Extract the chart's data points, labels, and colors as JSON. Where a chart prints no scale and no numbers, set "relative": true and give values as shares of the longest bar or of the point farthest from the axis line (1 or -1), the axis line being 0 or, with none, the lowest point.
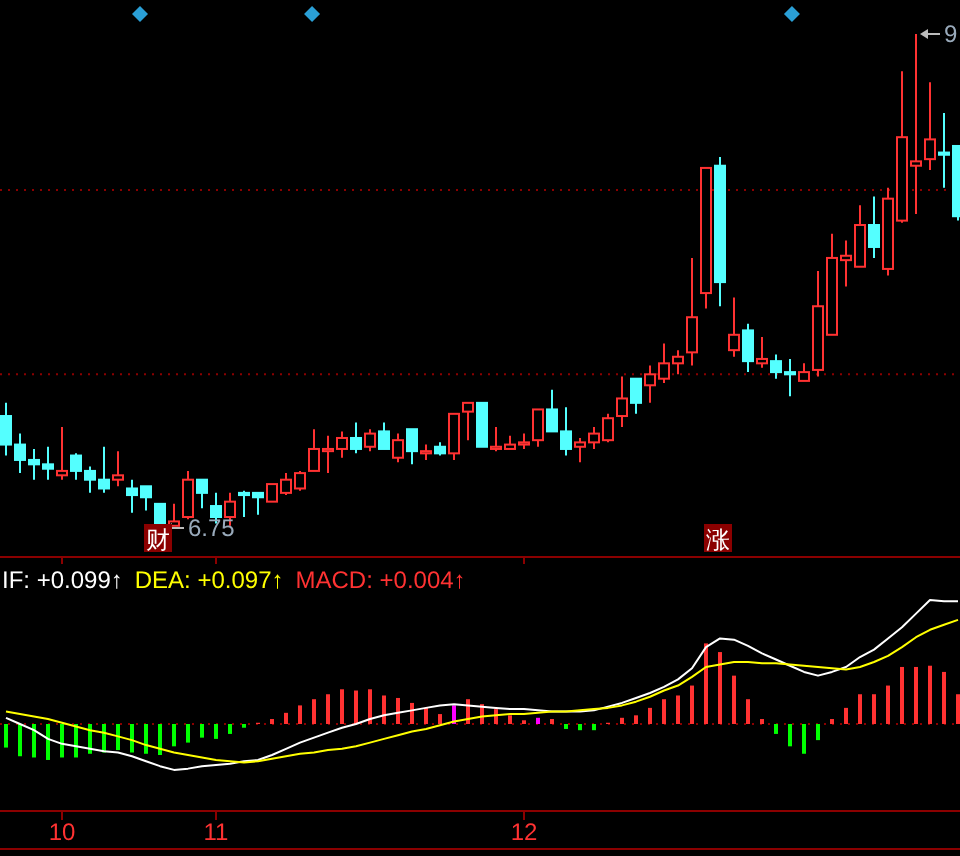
{
  "chart_data": [
    {
      "type": "candlestick",
      "categories": [
        null,
        null,
        null,
        null,
        "10",
        null,
        null,
        null,
        null,
        null,
        null,
        null,
        null,
        null,
        null,
        "11",
        null,
        null,
        null,
        null,
        null,
        null,
        null,
        null,
        null,
        null,
        null,
        null,
        null,
        null,
        null,
        null,
        null,
        null,
        null,
        null,
        null,
        "12",
        null,
        null,
        null,
        null,
        null,
        null,
        null,
        null,
        null,
        null,
        null,
        null,
        null,
        null,
        null,
        null,
        null,
        null,
        null,
        null,
        null,
        null,
        null,
        null,
        null,
        null,
        null,
        null,
        null,
        null,
        null
      ],
      "tick_labels": false,
      "ref_lines": [
        {
          "axis": "y",
          "value": 7.45,
          "color": "#8b0000",
          "line_style": "dotted"
        },
        {
          "axis": "y",
          "value": 8.29,
          "color": "#8b0000",
          "line_style": "dotted"
        }
      ],
      "ohlc": [
        [
          7.26,
          7.32,
          7.08,
          7.13
        ],
        [
          7.13,
          7.18,
          7.0,
          7.06
        ],
        [
          7.06,
          7.11,
          6.97,
          7.04
        ],
        [
          7.04,
          7.12,
          6.97,
          7.02
        ],
        [
          6.99,
          7.21,
          6.97,
          7.01
        ],
        [
          7.08,
          7.09,
          6.97,
          7.01
        ],
        [
          7.01,
          7.03,
          6.91,
          6.97
        ],
        [
          6.97,
          7.12,
          6.91,
          6.93
        ],
        [
          6.97,
          7.1,
          6.94,
          6.99
        ],
        [
          6.93,
          6.97,
          6.82,
          6.9
        ],
        [
          6.94,
          6.94,
          6.83,
          6.89
        ],
        [
          6.86,
          6.86,
          6.75,
          6.76
        ],
        [
          6.76,
          6.86,
          6.76,
          6.78
        ],
        [
          6.8,
          7.01,
          6.79,
          6.97
        ],
        [
          6.97,
          6.97,
          6.84,
          6.91
        ],
        [
          6.85,
          6.91,
          6.77,
          6.8
        ],
        [
          6.8,
          6.91,
          6.76,
          6.87
        ],
        [
          6.91,
          6.92,
          6.8,
          6.9
        ],
        [
          6.91,
          6.91,
          6.81,
          6.89
        ],
        [
          6.87,
          6.95,
          6.87,
          6.95
        ],
        [
          6.91,
          7.0,
          6.9,
          6.97
        ],
        [
          6.93,
          7.01,
          6.92,
          7.0
        ],
        [
          7.01,
          7.2,
          7.01,
          7.11
        ],
        [
          7.1,
          7.17,
          7.0,
          7.11
        ],
        [
          7.11,
          7.19,
          7.07,
          7.16
        ],
        [
          7.16,
          7.23,
          7.09,
          7.11
        ],
        [
          7.12,
          7.2,
          7.1,
          7.18
        ],
        [
          7.19,
          7.23,
          7.11,
          7.11
        ],
        [
          7.07,
          7.18,
          7.05,
          7.15
        ],
        [
          7.2,
          7.2,
          7.04,
          7.1
        ],
        [
          7.09,
          7.13,
          7.06,
          7.1
        ],
        [
          7.12,
          7.14,
          7.08,
          7.09
        ],
        [
          7.09,
          7.27,
          7.06,
          7.27
        ],
        [
          7.28,
          7.32,
          7.15,
          7.32
        ],
        [
          7.32,
          7.32,
          7.12,
          7.12
        ],
        [
          7.11,
          7.21,
          7.1,
          7.12
        ],
        [
          7.11,
          7.17,
          7.11,
          7.13
        ],
        [
          7.13,
          7.18,
          7.11,
          7.14
        ],
        [
          7.15,
          7.29,
          7.12,
          7.29
        ],
        [
          7.29,
          7.38,
          7.19,
          7.19
        ],
        [
          7.19,
          7.3,
          7.08,
          7.11
        ],
        [
          7.12,
          7.16,
          7.05,
          7.14
        ],
        [
          7.14,
          7.21,
          7.11,
          7.18
        ],
        [
          7.15,
          7.27,
          7.14,
          7.25
        ],
        [
          7.26,
          7.44,
          7.21,
          7.34
        ],
        [
          7.43,
          7.43,
          7.27,
          7.32
        ],
        [
          7.4,
          7.49,
          7.32,
          7.45
        ],
        [
          7.43,
          7.59,
          7.41,
          7.5
        ],
        [
          7.5,
          7.56,
          7.45,
          7.53
        ],
        [
          7.55,
          7.98,
          7.49,
          7.71
        ],
        [
          7.82,
          8.39,
          7.75,
          8.39
        ],
        [
          8.4,
          8.44,
          7.76,
          7.87
        ],
        [
          7.56,
          7.8,
          7.53,
          7.63
        ],
        [
          7.65,
          7.68,
          7.46,
          7.51
        ],
        [
          7.5,
          7.62,
          7.48,
          7.52
        ],
        [
          7.51,
          7.54,
          7.43,
          7.46
        ],
        [
          7.46,
          7.52,
          7.35,
          7.45
        ],
        [
          7.42,
          7.5,
          7.42,
          7.46
        ],
        [
          7.47,
          7.92,
          7.44,
          7.76
        ],
        [
          7.63,
          8.09,
          7.63,
          7.98
        ],
        [
          7.97,
          8.06,
          7.85,
          7.99
        ],
        [
          7.94,
          8.22,
          7.94,
          8.13
        ],
        [
          8.13,
          8.26,
          7.98,
          8.03
        ],
        [
          7.93,
          8.3,
          7.9,
          8.25
        ],
        [
          8.15,
          8.83,
          8.14,
          8.53
        ],
        [
          8.4,
          9.0,
          8.18,
          8.42
        ],
        [
          8.43,
          8.78,
          8.38,
          8.52
        ],
        [
          8.46,
          8.64,
          8.3,
          8.45
        ],
        [
          8.49,
          8.49,
          8.15,
          8.17
        ]
      ],
      "colors": [
        "#54ffff",
        "#54ffff",
        "#54ffff",
        "#54ffff",
        "#ff3232",
        "#54ffff",
        "#54ffff",
        "#54ffff",
        "#ff3232",
        "#54ffff",
        "#54ffff",
        "#54ffff",
        "#ff3232",
        "#ff3232",
        "#54ffff",
        "#54ffff",
        "#ff3232",
        "#54ffff",
        "#54ffff",
        "#ff3232",
        "#ff3232",
        "#ff3232",
        "#ff3232",
        "#ff3232",
        "#ff3232",
        "#54ffff",
        "#ff3232",
        "#54ffff",
        "#ff3232",
        "#54ffff",
        "#ff3232",
        "#54ffff",
        "#ff3232",
        "#ff3232",
        "#54ffff",
        "#ff3232",
        "#ff3232",
        "#ff3232",
        "#ff3232",
        "#54ffff",
        "#54ffff",
        "#ff3232",
        "#ff3232",
        "#ff3232",
        "#ff3232",
        "#54ffff",
        "#ff3232",
        "#ff3232",
        "#ff3232",
        "#ff3232",
        "#ff3232",
        "#54ffff",
        "#ff3232",
        "#54ffff",
        "#ff3232",
        "#54ffff",
        "#54ffff",
        "#ff3232",
        "#ff3232",
        "#ff3232",
        "#ff3232",
        "#ff3232",
        "#54ffff",
        "#ff3232",
        "#ff3232",
        "#ff3232",
        "#ff3232",
        "#54ffff",
        "#54ffff"
      ],
      "annotations": [
        "9",
        "6.75",
        "财",
        "涨"
      ]
    },
    {
      "type": "bar",
      "relative": true,
      "categories": [
        null,
        null,
        null,
        null,
        "10",
        null,
        null,
        null,
        null,
        null,
        null,
        null,
        null,
        null,
        null,
        "11",
        null,
        null,
        null,
        null,
        null,
        null,
        null,
        null,
        null,
        null,
        null,
        null,
        null,
        null,
        null,
        null,
        null,
        null,
        null,
        null,
        null,
        "12",
        null,
        null,
        null,
        null,
        null,
        null,
        null,
        null,
        null,
        null,
        null,
        null,
        null,
        null,
        null,
        null,
        null,
        null,
        null,
        null,
        null,
        null,
        null,
        null,
        null,
        null,
        null,
        null,
        null,
        null,
        null
      ],
      "tick_labels": "x",
      "legend": "top left",
      "ref_lines": [
        {
          "axis": "y",
          "value": 0,
          "color": "#8b0000",
          "line_style": "dotted"
        }
      ],
      "series": [
        {
          "name": "IF: +0.099↑",
          "type": "line",
          "color": "#ffffff",
          "values": [
            0.05,
            0,
            -0.05,
            -0.12,
            -0.16,
            -0.18,
            -0.2,
            -0.22,
            -0.23,
            -0.26,
            -0.3,
            -0.34,
            -0.37,
            -0.36,
            -0.34,
            -0.33,
            -0.32,
            -0.3,
            -0.29,
            -0.25,
            -0.2,
            -0.15,
            -0.11,
            -0.07,
            -0.03,
            0,
            0.04,
            0.07,
            0.09,
            0.11,
            0.13,
            0.15,
            0.16,
            0.15,
            0.14,
            0.13,
            0.12,
            0.12,
            0.11,
            0.1,
            0.1,
            0.1,
            0.11,
            0.14,
            0.17,
            0.21,
            0.25,
            0.3,
            0.36,
            0.45,
            0.62,
            0.69,
            0.68,
            0.63,
            0.57,
            0.52,
            0.47,
            0.42,
            0.39,
            0.42,
            0.46,
            0.54,
            0.6,
            0.69,
            0.78,
            0.89,
            1,
            0.99,
            0.99
          ]
        },
        {
          "name": "DEA: +0.097↑",
          "type": "line",
          "color": "#ffff00",
          "values": [
            0.1,
            0.08,
            0.06,
            0.04,
            0.01,
            -0.02,
            -0.05,
            -0.07,
            -0.1,
            -0.13,
            -0.17,
            -0.2,
            -0.23,
            -0.25,
            -0.27,
            -0.29,
            -0.3,
            -0.31,
            -0.3,
            -0.28,
            -0.26,
            -0.24,
            -0.23,
            -0.21,
            -0.2,
            -0.18,
            -0.15,
            -0.12,
            -0.09,
            -0.06,
            -0.04,
            -0.01,
            0.02,
            0.04,
            0.06,
            0.07,
            0.08,
            0.08,
            0.09,
            0.1,
            0.1,
            0.11,
            0.12,
            0.13,
            0.15,
            0.18,
            0.22,
            0.27,
            0.31,
            0.38,
            0.46,
            0.48,
            0.5,
            0.5,
            0.49,
            0.49,
            0.48,
            0.47,
            0.46,
            0.45,
            0.44,
            0.46,
            0.5,
            0.55,
            0.62,
            0.7,
            0.76,
            0.8,
            0.84
          ]
        },
        {
          "name": "MACD: +0.004↑",
          "type": "bar",
          "color": "#ff3232",
          "values": [
            -0.19,
            -0.26,
            -0.27,
            -0.29,
            -0.27,
            -0.27,
            -0.24,
            -0.23,
            -0.21,
            -0.23,
            -0.24,
            -0.25,
            -0.18,
            -0.15,
            -0.11,
            -0.12,
            -0.08,
            -0.03,
            0.01,
            0.04,
            0.09,
            0.15,
            0.2,
            0.24,
            0.28,
            0.27,
            0.28,
            0.23,
            0.21,
            0.17,
            0.13,
            0.08,
            0.15,
            0.2,
            0.16,
            0.12,
            0.07,
            0.03,
            0.05,
            0.04,
            -0.04,
            -0.05,
            -0.05,
            0.01,
            0.05,
            0.07,
            0.13,
            0.2,
            0.23,
            0.31,
            0.65,
            0.58,
            0.39,
            0.2,
            0.04,
            -0.08,
            -0.18,
            -0.24,
            -0.13,
            0.04,
            0.13,
            0.24,
            0.24,
            0.31,
            0.46,
            0.46,
            0.47,
            0.42,
            0.24
          ],
          "colors": [
            "#00ff00",
            "#00ff00",
            "#00ff00",
            "#00ff00",
            "#00ff00",
            "#00ff00",
            "#00ff00",
            "#00ff00",
            "#00ff00",
            "#00ff00",
            "#00ff00",
            "#00ff00",
            "#00ff00",
            "#00ff00",
            "#00ff00",
            "#00ff00",
            "#00ff00",
            "#00ff00",
            "#ff3232",
            "#ff3232",
            "#ff3232",
            "#ff3232",
            "#ff3232",
            "#ff3232",
            "#ff3232",
            "#ff3232",
            "#ff3232",
            "#ff3232",
            "#ff3232",
            "#ff3232",
            "#ff3232",
            "#ff3232",
            "#ff00ff",
            "#ff3232",
            "#ff3232",
            "#ff3232",
            "#ff3232",
            "#ff3232",
            "#ff00ff",
            "#ff3232",
            "#00ff00",
            "#00ff00",
            "#00ff00",
            "#ff3232",
            "#ff3232",
            "#ff3232",
            "#ff3232",
            "#ff3232",
            "#ff3232",
            "#ff3232",
            "#ff3232",
            "#ff3232",
            "#ff3232",
            "#ff3232",
            "#ff3232",
            "#00ff00",
            "#00ff00",
            "#00ff00",
            "#00ff00",
            "#ff3232",
            "#ff3232",
            "#ff3232",
            "#ff3232",
            "#ff3232",
            "#ff3232",
            "#ff3232",
            "#ff3232",
            "#ff3232",
            "#ff3232"
          ]
        }
      ]
    }
  ]
}
